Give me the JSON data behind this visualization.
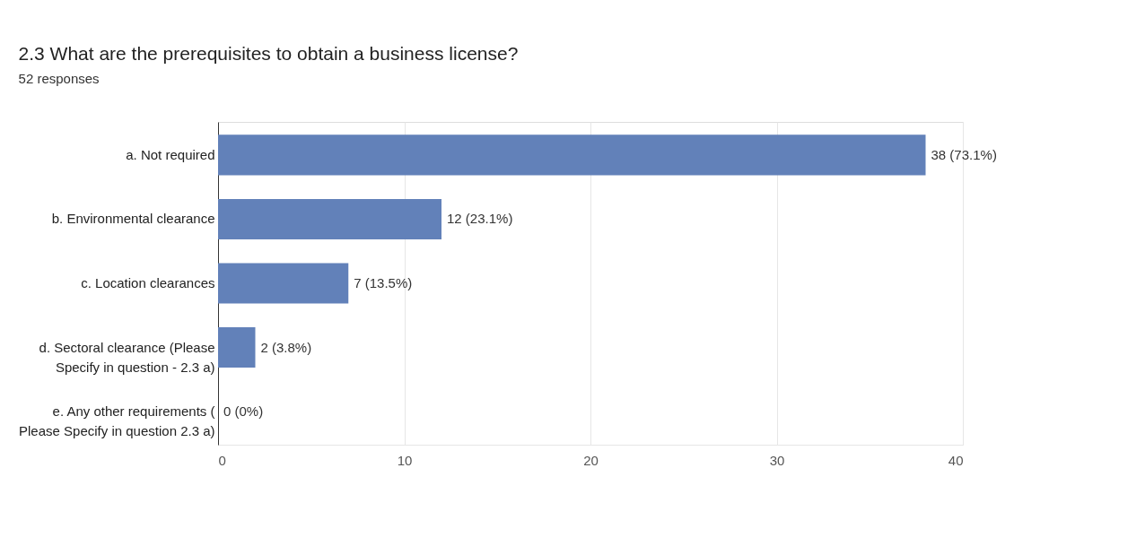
{
  "chart_data": {
    "type": "bar",
    "orientation": "horizontal",
    "title": "2.3 What are the prerequisites to obtain a business license?",
    "subtitle": "52 responses",
    "categories": [
      "a. Not required",
      "b. Environmental clearance",
      "c. Location clearances",
      "d. Sectoral clearance (Please\nSpecify in question - 2.3 a)",
      "e. Any other requirements (\nPlease Specify in question 2.3 a)"
    ],
    "values": [
      38,
      12,
      7,
      2,
      0
    ],
    "value_labels": [
      "38 (73.1%)",
      "12 (23.1%)",
      "7 (13.5%)",
      "2 (3.8%)",
      "0 (0%)"
    ],
    "color": "#6281b9",
    "xlim": [
      0,
      40
    ],
    "xticks": [
      0,
      10,
      20,
      30,
      40
    ],
    "grid": "x"
  }
}
